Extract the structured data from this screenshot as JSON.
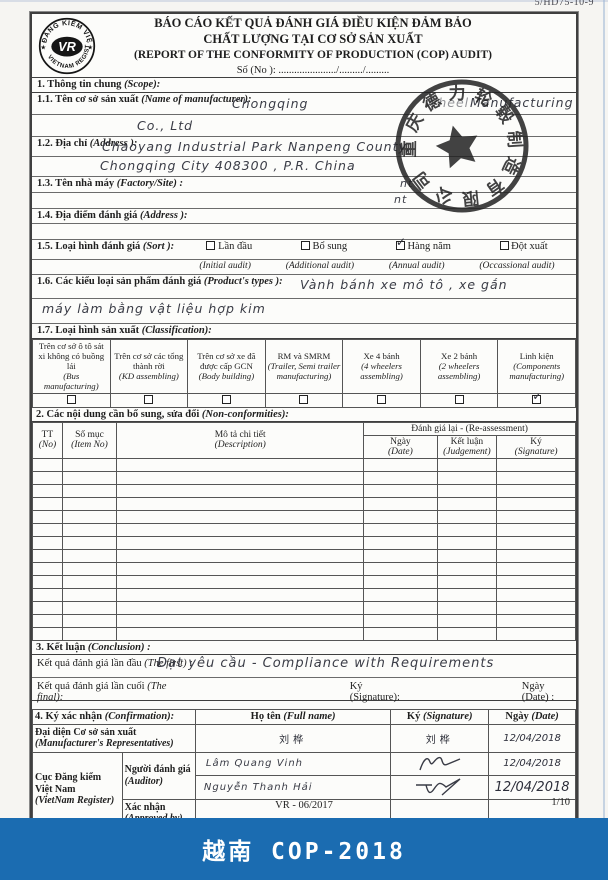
{
  "page": {
    "corner_ref": "5/HD75-10-9",
    "footer_code": "VR - 06/2017",
    "footer_page": "1/10",
    "banner_label": "越南 COP-2018",
    "banner_color": "#1b6cb1"
  },
  "logo": {
    "arc_top": "ĐĂNG KIỂM VIỆT NAM",
    "arc_bottom": "VIETNAM REGISTER",
    "monogram": "VR",
    "star": "★"
  },
  "stamp": {
    "text": "重庆德力轮毂制造有限公司"
  },
  "header": {
    "title_vi_1": "BÁO CÁO KẾT QUẢ ĐÁNH GIÁ ĐIỀU KIỆN ĐẢM BẢO",
    "title_vi_2": "CHẤT LƯỢNG TẠI CƠ SỞ SẢN XUẤT",
    "title_en": "(REPORT OF THE CONFORMITY OF PRODUCTION (COP) AUDIT)",
    "so_no": "Số (No ): ....................../........./........."
  },
  "section1": {
    "heading_vi": "1.  Thông tin chung",
    "heading_en": "(Scope):",
    "f11_vi": "1.1. Tên cơ sở sản xuất",
    "f11_en": "(Name of manufacturer):",
    "f11_hw_a": "Chongqing",
    "f11_hw_b": "Wheel",
    "f11_hw_c": "Manufacturing",
    "f11_hw_line2": "Co., Ltd",
    "f12_vi": "1.2. Địa chỉ",
    "f12_en": "(Address ):",
    "f12_hw_line1": "Chaoyang   Industrial   Park   Nanpeng  County,",
    "f12_hw_line2": "Chongqing   City   408300 ,   P.R.  China",
    "f13_vi": "1.3. Tên nhà máy",
    "f13_en": "(Factory/Site) :",
    "f13_hw": "nt",
    "f13b_hw": "nt",
    "f14_vi": "1.4. Địa điểm đánh giá",
    "f14_en": "(Address ):",
    "f15_vi": "1.5. Loại hình đánh giá",
    "f15_en": "(Sort ):",
    "sort_options": [
      {
        "label": "Lần đầu",
        "sub": "(Initial audit)",
        "checked": false
      },
      {
        "label": "Bổ sung",
        "sub": "(Additional audit)",
        "checked": false
      },
      {
        "label": "Hàng năm",
        "sub": "(Annual audit)",
        "checked": true
      },
      {
        "label": "Đột xuất",
        "sub": "(Occassional audit)",
        "checked": false
      }
    ],
    "f16_vi": "1.6. Các kiểu loại sản phẩm đánh giá",
    "f16_en": "(Product's types ):",
    "f16_hw_line1": "Vành   bánh xe   mô tô ,  xe gắn",
    "f16_hw_line2": "máy   làm bằng   vật liệu   hợp kim",
    "f17_vi": "1.7. Loại hình sản xuất",
    "f17_en": "(Classification):",
    "classification": [
      {
        "vi": "Trên cơ sở ô tô sát xi không có buồng lái",
        "en": "(Bus manufacturing)",
        "checked": false
      },
      {
        "vi": "Trên cơ sở các tổng thành rời",
        "en": "(KD assembling)",
        "checked": false
      },
      {
        "vi": "Trên cơ sở xe đã được cấp GCN",
        "en": "(Body building)",
        "checked": false
      },
      {
        "vi": "RM và SMRM",
        "en": "(Trailer, Semi trailer manufacturing)",
        "checked": false
      },
      {
        "vi": "Xe 4 bánh",
        "en": "(4 wheelers assembling)",
        "checked": false
      },
      {
        "vi": "Xe 2 bánh",
        "en": "(2 wheelers assembling)",
        "checked": false
      },
      {
        "vi": "Linh kiện",
        "en": "(Components manufacturing)",
        "checked": true
      }
    ]
  },
  "section2": {
    "heading_vi": "2. Các nội dung cần bổ sung, sửa đổi",
    "heading_en": "(Non-conformities):",
    "col_tt_vi": "TT",
    "col_tt_en": "(No)",
    "col_item_vi": "Số mục",
    "col_item_en": "(Item No)",
    "col_desc_vi": "Mô tả chi tiết",
    "col_desc_en": "(Description)",
    "reassessment": "Đánh giá lại - (Re-assessment)",
    "col_date_vi": "Ngày",
    "col_date_en": "(Date)",
    "col_judge_vi": "Kết luận",
    "col_judge_en": "(Judgement)",
    "col_sig_vi": "Ký",
    "col_sig_en": "(Signature)",
    "empty_row_count": 14
  },
  "section3": {
    "heading_vi": "3. Kết luận",
    "heading_en": "(Conclusion) :",
    "first_label_vi": "Kết quả đánh giá lần đầu",
    "first_label_en": "(The first) :",
    "first_hw": "Đạt yêu cầu  -  Compliance  with  Requirements",
    "final_label_vi": "Kết quả đánh giá lần cuối",
    "final_label_en": "(The final):",
    "final_sig_label": "Ký (Signature):",
    "final_date_label": "Ngày (Date) :"
  },
  "section4": {
    "heading_vi": "4. Ký xác nhận",
    "heading_en": "(Confirmation):",
    "col_name_vi": "Họ tên",
    "col_name_en": "(Full name)",
    "col_sig_vi": "Ký",
    "col_sig_en": "(Signature)",
    "col_date_vi": "Ngày",
    "col_date_en": "(Date)",
    "rep_label_vi": "Đại diện Cơ sở sản xuất",
    "rep_label_en": "(Manufacturer's Representatives)",
    "rep_name": "刘桦",
    "rep_sig": "刘桦",
    "rep_date": "12/04/2018",
    "vr_label_vi": "Cục Đăng kiểm Việt Nam",
    "vr_label_en": "(VietNam Register)",
    "auditor_label_vi": "Người đánh giá",
    "auditor_label_en": "(Auditor)",
    "auditor1_name": "Lâm Quang Vinh",
    "auditor1_date": "12/04/2018",
    "auditor2_name": "Nguyễn Thanh Hải",
    "auditor2_date": "12/04/2018",
    "approved_label_vi": "Xác nhận",
    "approved_label_en": "(Approved by)"
  }
}
